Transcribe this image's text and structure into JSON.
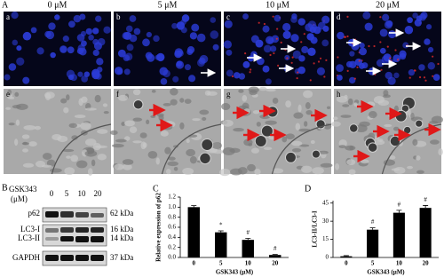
{
  "figure": {
    "panel_a": {
      "label": "A",
      "doses": [
        "0 μM",
        "5 μM",
        "10 μM",
        "20 μM"
      ],
      "fluorescence_letters": [
        "a",
        "b",
        "c",
        "d"
      ],
      "em_letters": [
        "e",
        "f",
        "g",
        "h"
      ]
    },
    "panel_b": {
      "label": "B",
      "treatment": "GSK343",
      "unit": "(μM)",
      "lanes": [
        "0",
        "5",
        "10",
        "20"
      ],
      "proteins": [
        "p62",
        "LC3-I",
        "LC3-II",
        "GAPDH"
      ],
      "sizes": [
        "62 kDa",
        "16 kDa",
        "14 kDa",
        "37 kDa"
      ]
    }
  },
  "chart_data": [
    {
      "type": "bar",
      "panel": "C",
      "y_label": "Relative expression of p62",
      "x_label": "GSK343 (μM)",
      "categories": [
        "0",
        "5",
        "10",
        "20"
      ],
      "values": [
        1.0,
        0.5,
        0.35,
        0.05
      ],
      "errors": [
        0.03,
        0.03,
        0.03,
        0.01
      ],
      "markers": [
        null,
        "*",
        "#",
        "#"
      ],
      "color": "#000000",
      "ylim": [
        0,
        1.2
      ],
      "yticks": [
        {
          "value": 0,
          "label": "0.0"
        },
        0.2,
        0.4,
        0.6,
        0.8,
        {
          "value": 1,
          "label": "1.0"
        },
        1.2
      ]
    },
    {
      "type": "bar",
      "panel": "D",
      "y_label": "LC3-II/LC3-I",
      "x_label": "GSK343 (μM)",
      "categories": [
        "0",
        "5",
        "10",
        "20"
      ],
      "values": [
        1,
        23,
        37,
        41
      ],
      "errors": [
        0.5,
        1.5,
        2,
        2
      ],
      "markers": [
        null,
        "#",
        "#",
        "#"
      ],
      "color": "#000000",
      "ylim": [
        0,
        47
      ],
      "yticks": [
        0,
        15,
        30,
        45
      ]
    }
  ]
}
